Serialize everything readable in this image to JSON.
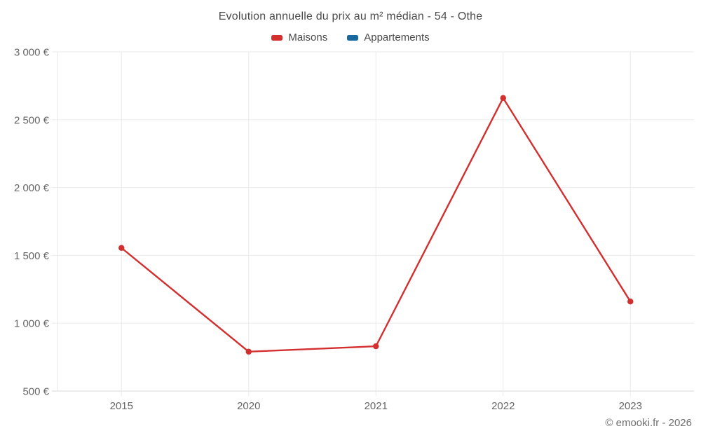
{
  "header": {
    "title": "Evolution annuelle du prix au m² médian - 54 - Othe"
  },
  "footer": {
    "copyright": "© emooki.fr - 2026"
  },
  "chart_data": {
    "type": "line",
    "title": "Evolution annuelle du prix au m² médian - 54 - Othe",
    "categories": [
      "2015",
      "2020",
      "2021",
      "2022",
      "2023"
    ],
    "series": [
      {
        "name": "Maisons",
        "color": "#d32f2f",
        "values": [
          1555,
          790,
          830,
          2660,
          1160
        ]
      },
      {
        "name": "Appartements",
        "color": "#1a699e",
        "values": []
      }
    ],
    "xlabel": "",
    "ylabel": "",
    "ylim": [
      500,
      3000
    ],
    "yticks": [
      {
        "value": 500,
        "label": "500 €"
      },
      {
        "value": 1000,
        "label": "1 000 €"
      },
      {
        "value": 1500,
        "label": "1 500 €"
      },
      {
        "value": 2000,
        "label": "2 000 €"
      },
      {
        "value": 2500,
        "label": "2 500 €"
      },
      {
        "value": 3000,
        "label": "3 000 €"
      }
    ],
    "grid": true,
    "legend_position": "top",
    "colors": {
      "grid": "#ebebeb",
      "axis_line": "#d9d9d9",
      "tick_text": "#666666"
    }
  }
}
